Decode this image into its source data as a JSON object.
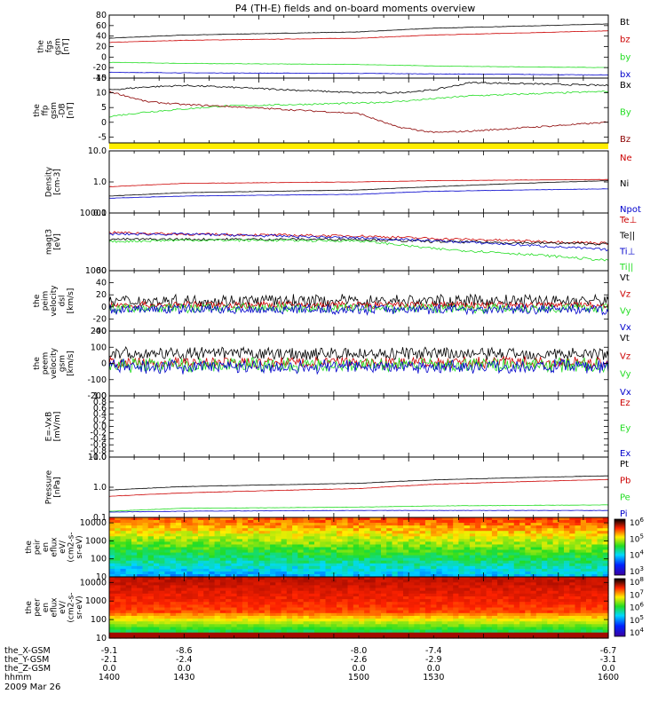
{
  "title": "P4 (TH-E) fields and on-board moments overview",
  "date": "2009 Mar 26",
  "colors": {
    "black": "#000000",
    "red": "#cc0000",
    "green": "#22dd22",
    "blue": "#0000cc",
    "yellow": "#ffee00",
    "darkred": "#8b0000"
  },
  "chart_data": [
    {
      "type": "line",
      "id": "fgs",
      "ylabel": [
        "the",
        "fgs",
        "gsm",
        "[nT]"
      ],
      "ylim": [
        -40,
        80
      ],
      "ticks": [
        "80",
        "60",
        "40",
        "20",
        "0",
        "-20",
        "-40"
      ],
      "legend": [
        {
          "name": "Bt",
          "color": "black"
        },
        {
          "name": "bz",
          "color": "red"
        },
        {
          "name": "by",
          "color": "green"
        },
        {
          "name": "bx",
          "color": "blue"
        }
      ],
      "series": [
        {
          "name": "Bt",
          "x": [
            1400,
            1430,
            1500,
            1530,
            1600
          ],
          "y": [
            36,
            42,
            48,
            55,
            63
          ]
        },
        {
          "name": "bz",
          "x": [
            1400,
            1430,
            1500,
            1530,
            1600
          ],
          "y": [
            28,
            32,
            36,
            42,
            50
          ]
        },
        {
          "name": "by",
          "x": [
            1400,
            1430,
            1500,
            1530,
            1600
          ],
          "y": [
            -10,
            -12,
            -14,
            -17,
            -20
          ]
        },
        {
          "name": "bx",
          "x": [
            1400,
            1430,
            1500,
            1530,
            1600
          ],
          "y": [
            -29,
            -30,
            -31,
            -32,
            -34
          ]
        }
      ]
    },
    {
      "type": "line",
      "id": "ffp",
      "ylabel": [
        "the",
        "ffp",
        "gsm",
        "-DB",
        "[nT]"
      ],
      "ylim": [
        -7,
        15
      ],
      "ticks": [
        "15",
        "10",
        "5",
        "0",
        "-5"
      ],
      "legend": [
        {
          "name": "Bx",
          "color": "black"
        },
        {
          "name": "By",
          "color": "green"
        },
        {
          "name": "Bz",
          "color": "darkred"
        }
      ],
      "series": [
        {
          "name": "Bx",
          "x": [
            1400,
            1415,
            1430,
            1445,
            1500,
            1515,
            1530,
            1545,
            1600
          ],
          "y": [
            11,
            12,
            12.5,
            12,
            10,
            10,
            11,
            13.5,
            12.5
          ]
        },
        {
          "name": "By",
          "x": [
            1400,
            1415,
            1430,
            1445,
            1500,
            1515,
            1530,
            1545,
            1600
          ],
          "y": [
            2,
            3.5,
            4.5,
            5.5,
            6.5,
            7,
            8,
            9,
            10.5
          ]
        },
        {
          "name": "Bz",
          "x": [
            1400,
            1415,
            1430,
            1445,
            1500,
            1515,
            1530,
            1545,
            1600
          ],
          "y": [
            10.5,
            7,
            6,
            5.5,
            3,
            -1.5,
            -3.5,
            -3,
            0
          ]
        }
      ]
    },
    {
      "type": "line",
      "id": "density",
      "ylabel": [
        "Density",
        "[cm-3]"
      ],
      "ylim": [
        0.1,
        10
      ],
      "log": true,
      "ticks": [
        "10.0",
        "1.0",
        "0.1"
      ],
      "legend": [
        {
          "name": "Ne",
          "color": "red"
        },
        {
          "name": "Ni",
          "color": "black"
        },
        {
          "name": "Npot",
          "color": "blue"
        }
      ],
      "series": [
        {
          "name": "Ne",
          "x": [
            1400,
            1430,
            1500,
            1530,
            1600
          ],
          "y": [
            0.7,
            0.9,
            1.0,
            1.1,
            1.2
          ]
        },
        {
          "name": "Ni",
          "x": [
            1400,
            1430,
            1500,
            1530,
            1600
          ],
          "y": [
            0.35,
            0.45,
            0.55,
            0.7,
            1.1
          ]
        },
        {
          "name": "Npot",
          "x": [
            1400,
            1430,
            1500,
            1530,
            1600
          ],
          "y": [
            0.3,
            0.35,
            0.4,
            0.5,
            0.6
          ]
        }
      ]
    },
    {
      "type": "line",
      "id": "temp",
      "ylabel": [
        "magt3",
        "[eV]"
      ],
      "ylim": [
        1000,
        10000
      ],
      "log": true,
      "ticks": [
        "10000",
        "1000"
      ],
      "legend": [
        {
          "name": "Te⊥",
          "color": "red"
        },
        {
          "name": "Te||",
          "color": "black"
        },
        {
          "name": "Ti⊥",
          "color": "blue"
        },
        {
          "name": "Ti||",
          "color": "green"
        }
      ],
      "series": [
        {
          "name": "Te⊥",
          "x": [
            1400,
            1430,
            1500,
            1530,
            1600
          ],
          "y": [
            4600,
            4300,
            4000,
            3600,
            3000
          ]
        },
        {
          "name": "Te||",
          "x": [
            1400,
            1430,
            1500,
            1530,
            1600
          ],
          "y": [
            3500,
            3500,
            3500,
            3200,
            2900
          ]
        },
        {
          "name": "Ti⊥",
          "x": [
            1400,
            1430,
            1500,
            1530,
            1600
          ],
          "y": [
            4300,
            4300,
            3700,
            3300,
            2300
          ]
        },
        {
          "name": "Ti||",
          "x": [
            1400,
            1430,
            1500,
            1530,
            1600
          ],
          "y": [
            3200,
            3400,
            3300,
            2400,
            1500
          ]
        }
      ]
    },
    {
      "type": "line",
      "id": "peim",
      "ylabel": [
        "the",
        "peim",
        "velocity",
        "dsl",
        "[km/s]"
      ],
      "ylim": [
        -40,
        60
      ],
      "ticks": [
        "60",
        "40",
        "20",
        "0",
        "-20",
        "-40"
      ],
      "legend": [
        {
          "name": "Vt",
          "color": "black"
        },
        {
          "name": "Vz",
          "color": "red"
        },
        {
          "name": "Vy",
          "color": "green"
        },
        {
          "name": "Vx",
          "color": "blue"
        }
      ],
      "series": [
        {
          "name": "Vt",
          "mean": 10,
          "amp": 12
        },
        {
          "name": "Vz",
          "mean": 3,
          "amp": 7
        },
        {
          "name": "Vy",
          "mean": -2,
          "amp": 9
        },
        {
          "name": "Vx",
          "mean": -4,
          "amp": 9
        }
      ]
    },
    {
      "type": "line",
      "id": "peem",
      "ylabel": [
        "the",
        "peem",
        "velocity",
        "gsm",
        "[km/s]"
      ],
      "ylim": [
        -200,
        200
      ],
      "ticks": [
        "200",
        "100",
        "0",
        "-100",
        "-200"
      ],
      "legend": [
        {
          "name": "Vt",
          "color": "black"
        },
        {
          "name": "Vz",
          "color": "red"
        },
        {
          "name": "Vy",
          "color": "green"
        },
        {
          "name": "Vx",
          "color": "blue"
        }
      ],
      "series": [
        {
          "name": "Vt",
          "mean": 60,
          "amp": 45
        },
        {
          "name": "Vz",
          "mean": 5,
          "amp": 40
        },
        {
          "name": "Vy",
          "mean": -10,
          "amp": 50
        },
        {
          "name": "Vx",
          "mean": -20,
          "amp": 50
        }
      ]
    },
    {
      "type": "line",
      "id": "efield",
      "ylabel": [
        "E=-VxB",
        "[mV/m]"
      ],
      "ylim": [
        -1,
        1
      ],
      "ticks": [
        "1.0",
        "0.8",
        "0.6",
        "0.4",
        "0.2",
        "0.0",
        "-0.2",
        "-0.4",
        "-0.6",
        "-0.8",
        "-1.0"
      ],
      "legend": [
        {
          "name": "Ez",
          "color": "red"
        },
        {
          "name": "Ey",
          "color": "green"
        },
        {
          "name": "Ex",
          "color": "blue"
        }
      ],
      "series": []
    },
    {
      "type": "line",
      "id": "pressure",
      "ylabel": [
        "Pressure",
        "[nPa]"
      ],
      "ylim": [
        0.1,
        10
      ],
      "log": true,
      "ticks": [
        "10.0",
        "1.0",
        "0.1"
      ],
      "legend": [
        {
          "name": "Pt",
          "color": "black"
        },
        {
          "name": "Pb",
          "color": "red"
        },
        {
          "name": "Pe",
          "color": "green"
        },
        {
          "name": "Pi",
          "color": "blue"
        }
      ],
      "series": [
        {
          "name": "Pt",
          "x": [
            1400,
            1430,
            1500,
            1530,
            1600
          ],
          "y": [
            0.8,
            1.05,
            1.35,
            1.75,
            2.4
          ]
        },
        {
          "name": "Pb",
          "x": [
            1400,
            1430,
            1500,
            1530,
            1600
          ],
          "y": [
            0.5,
            0.65,
            0.9,
            1.25,
            1.8
          ]
        },
        {
          "name": "Pe",
          "x": [
            1400,
            1430,
            1500,
            1530,
            1600
          ],
          "y": [
            0.16,
            0.2,
            0.22,
            0.24,
            0.26
          ]
        },
        {
          "name": "Pi",
          "x": [
            1400,
            1430,
            1500,
            1530,
            1600
          ],
          "y": [
            0.15,
            0.16,
            0.17,
            0.17,
            0.17
          ]
        }
      ]
    },
    {
      "type": "heatmap",
      "id": "peir",
      "ylabel": [
        "the",
        "peir",
        "en",
        "eflux",
        "eV/",
        "(cm2-s-",
        "sr-eV)"
      ],
      "ylim": [
        10,
        20000
      ],
      "log": true,
      "ticks": [
        "10000",
        "1000",
        "100",
        "10"
      ],
      "colorbar": {
        "ticks": [
          "10^6",
          "10^5",
          "10^4",
          "10^3"
        ],
        "range": [
          1000,
          1000000
        ]
      }
    },
    {
      "type": "heatmap",
      "id": "peer",
      "ylabel": [
        "the",
        "peer",
        "en",
        "eflux",
        "eV/",
        "(cm2-s-",
        "sr-eV)"
      ],
      "ylim": [
        10,
        20000
      ],
      "log": true,
      "ticks": [
        "10000",
        "1000",
        "100",
        "10"
      ],
      "colorbar": {
        "ticks": [
          "10^8",
          "10^7",
          "10^6",
          "10^5",
          "10^4"
        ],
        "range": [
          10000,
          100000000
        ]
      }
    }
  ],
  "xaxis": {
    "rows": [
      {
        "label": "the_X-GSM",
        "values": [
          "-9.1",
          "-8.6",
          "-8.0",
          "-7.4",
          "-6.7"
        ]
      },
      {
        "label": "the_Y-GSM",
        "values": [
          "-2.1",
          "-2.4",
          "-2.6",
          "-2.9",
          "-3.1"
        ]
      },
      {
        "label": "the_Z-GSM",
        "values": [
          "0.0",
          "0.0",
          "0.0",
          "0.0",
          "0.0"
        ]
      },
      {
        "label": "hhmm",
        "values": [
          "1400",
          "1430",
          "1500",
          "1530",
          "1600"
        ]
      }
    ]
  }
}
